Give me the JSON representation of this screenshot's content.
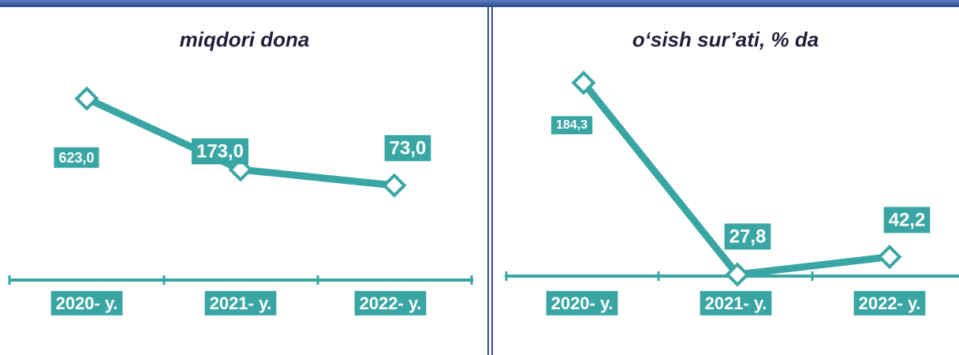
{
  "chart_data": [
    {
      "type": "line",
      "title": "miqdori dona",
      "categories": [
        "2020- у.",
        "2021- у.",
        "2022- у."
      ],
      "series": [
        {
          "color": "#3aa6a4",
          "values": [
            623.0,
            173.0,
            73.0
          ],
          "value_labels": [
            "623,0",
            "173,0",
            "73,0"
          ]
        }
      ]
    },
    {
      "type": "line",
      "title": "o‘sish sur’ati, % da",
      "categories": [
        "2020- у.",
        "2021- у.",
        "2022- у."
      ],
      "series": [
        {
          "color": "#3aa6a4",
          "values": [
            184.3,
            27.8,
            42.2
          ],
          "value_labels": [
            "184,3",
            "27,8",
            "42,2"
          ]
        }
      ]
    }
  ]
}
